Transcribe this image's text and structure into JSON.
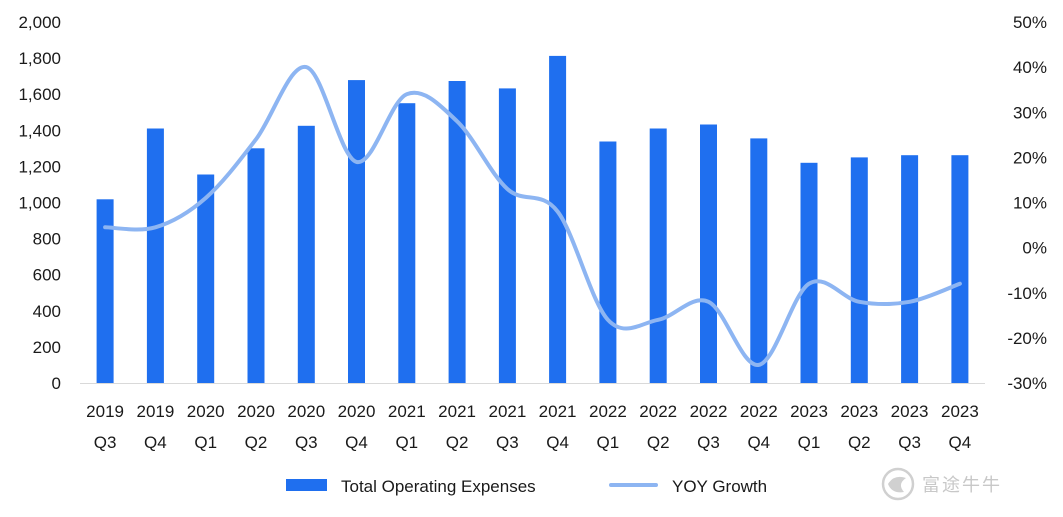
{
  "chart_data": {
    "type": "bar",
    "categories": [
      [
        "2019",
        "Q3"
      ],
      [
        "2019",
        "Q4"
      ],
      [
        "2020",
        "Q1"
      ],
      [
        "2020",
        "Q2"
      ],
      [
        "2020",
        "Q3"
      ],
      [
        "2020",
        "Q4"
      ],
      [
        "2021",
        "Q1"
      ],
      [
        "2021",
        "Q2"
      ],
      [
        "2021",
        "Q3"
      ],
      [
        "2021",
        "Q4"
      ],
      [
        "2022",
        "Q1"
      ],
      [
        "2022",
        "Q2"
      ],
      [
        "2022",
        "Q3"
      ],
      [
        "2022",
        "Q4"
      ],
      [
        "2023",
        "Q1"
      ],
      [
        "2023",
        "Q2"
      ],
      [
        "2023",
        "Q3"
      ],
      [
        "2023",
        "Q4"
      ]
    ],
    "series": [
      {
        "name": "Total Operating Expenses",
        "type": "bar",
        "axis": "left",
        "color": "#1f6fef",
        "values": [
          1018,
          1410,
          1155,
          1300,
          1425,
          1678,
          1550,
          1673,
          1632,
          1812,
          1338,
          1410,
          1432,
          1355,
          1220,
          1250,
          1262,
          1262
        ]
      },
      {
        "name": "YOY Growth",
        "type": "line",
        "axis": "right",
        "color": "#8db5f2",
        "unit": "%",
        "values": [
          4.5,
          4.5,
          11,
          24,
          40,
          19,
          34,
          28,
          13,
          8,
          -16,
          -16,
          -12,
          -26,
          -8,
          -12,
          -12,
          -8
        ]
      }
    ],
    "y_left": {
      "min": 0,
      "max": 2000,
      "step": 200,
      "tick_labels": [
        "0",
        "200",
        "400",
        "600",
        "800",
        "1,000",
        "1,200",
        "1,400",
        "1,600",
        "1,800",
        "2,000"
      ]
    },
    "y_right": {
      "min": -30,
      "max": 50,
      "step": 10,
      "tick_labels": [
        "-30%",
        "-20%",
        "-10%",
        "0%",
        "10%",
        "20%",
        "30%",
        "40%",
        "50%"
      ]
    },
    "xlabel": "",
    "ylabel": "",
    "grid": false,
    "legend": "bottom-center"
  },
  "watermark": {
    "text": "富途牛牛",
    "icon": "futu-logo-icon"
  }
}
